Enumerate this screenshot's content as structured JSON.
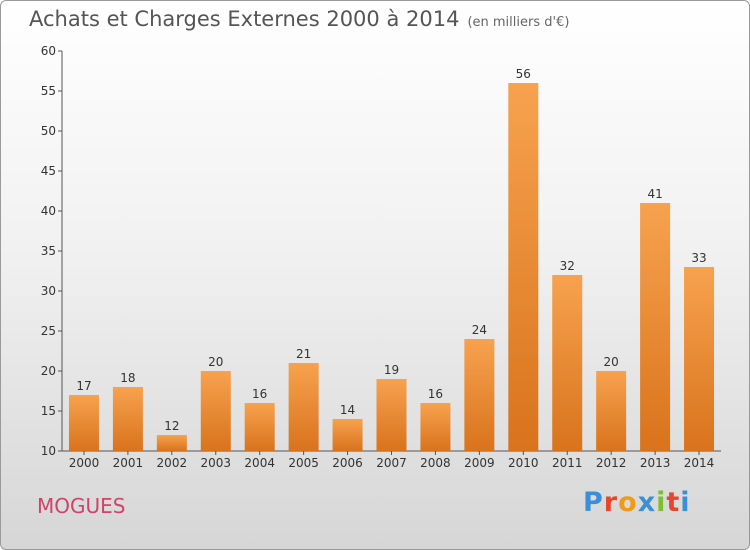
{
  "title": "Achats et Charges Externes 2000 à 2014",
  "subtitle": "(en milliers d'€)",
  "commune": "MOGUES",
  "brand": "Proxiti",
  "colors": {
    "bar_light": "#f7a24f",
    "bar_dark": "#d9731c",
    "commune_text": "#d0436a",
    "brand_letters": [
      "#3a8fd6",
      "#e8462b",
      "#f29a18",
      "#3a8fd6",
      "#7cbf30",
      "#e8462b",
      "#3a8fd6"
    ]
  },
  "chart_data": {
    "type": "bar",
    "categories": [
      "2000",
      "2001",
      "2002",
      "2003",
      "2004",
      "2005",
      "2006",
      "2007",
      "2008",
      "2009",
      "2010",
      "2011",
      "2012",
      "2013",
      "2014"
    ],
    "values": [
      17,
      18,
      12,
      20,
      16,
      21,
      14,
      19,
      16,
      24,
      56,
      32,
      20,
      41,
      33
    ],
    "ylim": [
      10,
      60
    ],
    "yticks": [
      10,
      15,
      20,
      25,
      30,
      35,
      40,
      45,
      50,
      55,
      60
    ],
    "grid": false,
    "data_labels": true
  }
}
